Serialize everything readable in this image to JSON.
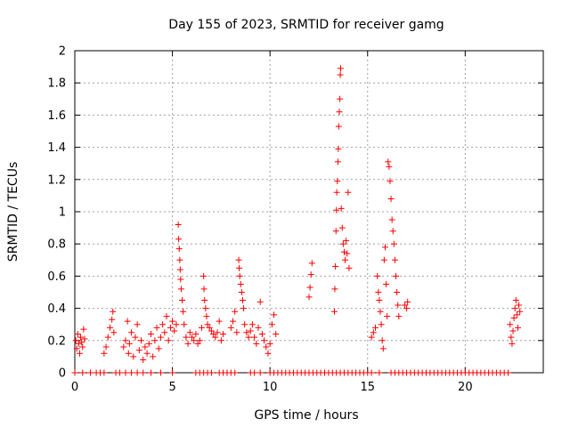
{
  "chart_data": {
    "type": "scatter",
    "title": "Day 155 of 2023, SRMTID for receiver gamg",
    "xlabel": "GPS time / hours",
    "ylabel": "SRMTID / TECUs",
    "xlim": [
      0,
      24
    ],
    "ylim": [
      0,
      2
    ],
    "grid": true,
    "marker": "+",
    "xticks": [
      0,
      5,
      10,
      15,
      20
    ],
    "xtick_labels": [
      "0",
      "5",
      "10",
      "15",
      "20"
    ],
    "yticks": [
      0,
      0.2,
      0.4,
      0.6,
      0.8,
      1,
      1.2,
      1.4,
      1.6,
      1.8,
      2
    ],
    "ytick_labels": [
      "0",
      "0.2",
      "0.4",
      "0.6",
      "0.8",
      "1",
      "1.2",
      "1.4",
      "1.6",
      "1.8",
      "2"
    ],
    "series": [
      {
        "name": "SRMTID",
        "color": "#ff0000",
        "points": [
          [
            0.05,
            0.2
          ],
          [
            0.1,
            0.15
          ],
          [
            0.15,
            0.24
          ],
          [
            0.2,
            0.18
          ],
          [
            0.25,
            0.12
          ],
          [
            0.3,
            0.22
          ],
          [
            0.35,
            0.19
          ],
          [
            0.4,
            0.16
          ],
          [
            0.45,
            0.27
          ],
          [
            0.5,
            0.21
          ],
          [
            1.5,
            0.12
          ],
          [
            1.6,
            0.16
          ],
          [
            1.7,
            0.22
          ],
          [
            1.8,
            0.28
          ],
          [
            1.9,
            0.33
          ],
          [
            1.95,
            0.38
          ],
          [
            2.0,
            0.25
          ],
          [
            2.5,
            0.16
          ],
          [
            2.6,
            0.2
          ],
          [
            2.7,
            0.32
          ],
          [
            2.75,
            0.12
          ],
          [
            2.8,
            0.18
          ],
          [
            2.9,
            0.25
          ],
          [
            3.0,
            0.1
          ],
          [
            3.1,
            0.22
          ],
          [
            3.2,
            0.3
          ],
          [
            3.3,
            0.14
          ],
          [
            3.4,
            0.2
          ],
          [
            3.5,
            0.08
          ],
          [
            3.6,
            0.16
          ],
          [
            3.7,
            0.12
          ],
          [
            3.8,
            0.18
          ],
          [
            3.9,
            0.24
          ],
          [
            4.0,
            0.1
          ],
          [
            4.1,
            0.2
          ],
          [
            4.2,
            0.28
          ],
          [
            4.3,
            0.15
          ],
          [
            4.4,
            0.22
          ],
          [
            4.5,
            0.3
          ],
          [
            4.6,
            0.25
          ],
          [
            4.7,
            0.35
          ],
          [
            4.8,
            0.2
          ],
          [
            4.9,
            0.28
          ],
          [
            5.0,
            0.32
          ],
          [
            5.1,
            0.26
          ],
          [
            5.2,
            0.3
          ],
          [
            5.3,
            0.92
          ],
          [
            5.32,
            0.83
          ],
          [
            5.35,
            0.77
          ],
          [
            5.38,
            0.7
          ],
          [
            5.4,
            0.64
          ],
          [
            5.42,
            0.58
          ],
          [
            5.45,
            0.52
          ],
          [
            5.5,
            0.45
          ],
          [
            5.55,
            0.38
          ],
          [
            5.6,
            0.3
          ],
          [
            5.7,
            0.22
          ],
          [
            5.8,
            0.18
          ],
          [
            5.9,
            0.25
          ],
          [
            6.0,
            0.22
          ],
          [
            6.1,
            0.2
          ],
          [
            6.2,
            0.24
          ],
          [
            6.3,
            0.18
          ],
          [
            6.4,
            0.2
          ],
          [
            6.5,
            0.28
          ],
          [
            6.6,
            0.6
          ],
          [
            6.62,
            0.52
          ],
          [
            6.65,
            0.45
          ],
          [
            6.7,
            0.4
          ],
          [
            6.75,
            0.35
          ],
          [
            6.8,
            0.3
          ],
          [
            6.9,
            0.28
          ],
          [
            7.0,
            0.26
          ],
          [
            7.1,
            0.24
          ],
          [
            7.2,
            0.22
          ],
          [
            7.3,
            0.25
          ],
          [
            7.4,
            0.32
          ],
          [
            7.5,
            0.2
          ],
          [
            7.6,
            0.24
          ],
          [
            8.0,
            0.28
          ],
          [
            8.1,
            0.32
          ],
          [
            8.2,
            0.38
          ],
          [
            8.3,
            0.25
          ],
          [
            8.4,
            0.7
          ],
          [
            8.42,
            0.65
          ],
          [
            8.45,
            0.6
          ],
          [
            8.5,
            0.55
          ],
          [
            8.55,
            0.5
          ],
          [
            8.6,
            0.45
          ],
          [
            8.65,
            0.4
          ],
          [
            8.7,
            0.3
          ],
          [
            8.8,
            0.25
          ],
          [
            8.9,
            0.22
          ],
          [
            9.0,
            0.26
          ],
          [
            9.1,
            0.3
          ],
          [
            9.2,
            0.22
          ],
          [
            9.3,
            0.18
          ],
          [
            9.4,
            0.28
          ],
          [
            9.5,
            0.44
          ],
          [
            9.6,
            0.24
          ],
          [
            9.7,
            0.2
          ],
          [
            9.8,
            0.16
          ],
          [
            9.9,
            0.12
          ],
          [
            10.0,
            0.18
          ],
          [
            10.1,
            0.3
          ],
          [
            10.2,
            0.36
          ],
          [
            10.3,
            0.24
          ],
          [
            12.0,
            0.47
          ],
          [
            12.05,
            0.53
          ],
          [
            12.1,
            0.61
          ],
          [
            12.15,
            0.68
          ],
          [
            13.3,
            0.38
          ],
          [
            13.32,
            0.52
          ],
          [
            13.35,
            0.66
          ],
          [
            13.38,
            0.88
          ],
          [
            13.4,
            1.01
          ],
          [
            13.42,
            1.12
          ],
          [
            13.45,
            1.19
          ],
          [
            13.48,
            1.31
          ],
          [
            13.5,
            1.39
          ],
          [
            13.52,
            1.53
          ],
          [
            13.55,
            1.62
          ],
          [
            13.58,
            1.7
          ],
          [
            13.6,
            1.85
          ],
          [
            13.62,
            1.89
          ],
          [
            13.65,
            1.02
          ],
          [
            13.7,
            0.9
          ],
          [
            13.75,
            0.8
          ],
          [
            13.8,
            0.75
          ],
          [
            13.85,
            0.7
          ],
          [
            13.9,
            0.82
          ],
          [
            13.95,
            0.74
          ],
          [
            14.0,
            1.12
          ],
          [
            14.05,
            0.65
          ],
          [
            15.2,
            0.22
          ],
          [
            15.3,
            0.25
          ],
          [
            15.4,
            0.28
          ],
          [
            15.5,
            0.6
          ],
          [
            15.55,
            0.5
          ],
          [
            15.6,
            0.45
          ],
          [
            15.65,
            0.38
          ],
          [
            15.7,
            0.3
          ],
          [
            15.75,
            0.2
          ],
          [
            15.8,
            0.15
          ],
          [
            15.85,
            0.7
          ],
          [
            15.9,
            0.78
          ],
          [
            15.95,
            0.55
          ],
          [
            16.0,
            0.35
          ],
          [
            16.05,
            1.31
          ],
          [
            16.1,
            1.28
          ],
          [
            16.15,
            1.19
          ],
          [
            16.2,
            1.08
          ],
          [
            16.25,
            0.95
          ],
          [
            16.3,
            0.88
          ],
          [
            16.35,
            0.8
          ],
          [
            16.4,
            0.7
          ],
          [
            16.45,
            0.6
          ],
          [
            16.5,
            0.5
          ],
          [
            16.55,
            0.42
          ],
          [
            16.6,
            0.35
          ],
          [
            16.9,
            0.42
          ],
          [
            17.0,
            0.4
          ],
          [
            17.05,
            0.44
          ],
          [
            22.3,
            0.3
          ],
          [
            22.35,
            0.22
          ],
          [
            22.4,
            0.18
          ],
          [
            22.45,
            0.26
          ],
          [
            22.5,
            0.34
          ],
          [
            22.55,
            0.4
          ],
          [
            22.6,
            0.45
          ],
          [
            22.65,
            0.36
          ],
          [
            22.7,
            0.28
          ],
          [
            22.75,
            0.42
          ],
          [
            22.8,
            0.38
          ],
          [
            0.0,
            0.0
          ],
          [
            0.4,
            0.0
          ],
          [
            0.8,
            0.0
          ],
          [
            1.1,
            0.0
          ],
          [
            1.3,
            0.0
          ],
          [
            1.5,
            0.0
          ],
          [
            2.1,
            0.0
          ],
          [
            2.3,
            0.0
          ],
          [
            2.6,
            0.0
          ],
          [
            2.9,
            0.0
          ],
          [
            3.2,
            0.0
          ],
          [
            3.5,
            0.0
          ],
          [
            3.9,
            0.0
          ],
          [
            4.4,
            0.0
          ],
          [
            5.0,
            0.0
          ],
          [
            6.2,
            0.0
          ],
          [
            6.4,
            0.0
          ],
          [
            6.6,
            0.0
          ],
          [
            6.8,
            0.0
          ],
          [
            7.0,
            0.0
          ],
          [
            7.4,
            0.0
          ],
          [
            7.6,
            0.0
          ],
          [
            7.8,
            0.0
          ],
          [
            8.0,
            0.0
          ],
          [
            8.2,
            0.0
          ],
          [
            9.0,
            0.0
          ],
          [
            9.2,
            0.0
          ],
          [
            9.5,
            0.0
          ],
          [
            10.0,
            0.0
          ],
          [
            10.2,
            0.0
          ],
          [
            10.4,
            0.0
          ],
          [
            10.6,
            0.0
          ],
          [
            10.8,
            0.0
          ],
          [
            11.0,
            0.0
          ],
          [
            11.2,
            0.0
          ],
          [
            11.4,
            0.0
          ],
          [
            11.6,
            0.0
          ],
          [
            11.8,
            0.0
          ],
          [
            12.0,
            0.0
          ],
          [
            12.2,
            0.0
          ],
          [
            12.4,
            0.0
          ],
          [
            12.6,
            0.0
          ],
          [
            12.8,
            0.0
          ],
          [
            13.0,
            0.0
          ],
          [
            13.2,
            0.0
          ],
          [
            13.4,
            0.0
          ],
          [
            13.6,
            0.0
          ],
          [
            13.8,
            0.0
          ],
          [
            14.0,
            0.0
          ],
          [
            14.2,
            0.0
          ],
          [
            14.4,
            0.0
          ],
          [
            14.6,
            0.0
          ],
          [
            14.8,
            0.0
          ],
          [
            15.0,
            0.0
          ],
          [
            15.2,
            0.0
          ],
          [
            15.6,
            0.0
          ],
          [
            16.2,
            0.0
          ],
          [
            16.4,
            0.0
          ],
          [
            16.6,
            0.0
          ],
          [
            16.8,
            0.0
          ],
          [
            17.0,
            0.0
          ],
          [
            17.2,
            0.0
          ],
          [
            17.4,
            0.0
          ],
          [
            17.6,
            0.0
          ],
          [
            17.8,
            0.0
          ],
          [
            18.0,
            0.0
          ],
          [
            18.2,
            0.0
          ],
          [
            18.4,
            0.0
          ],
          [
            18.6,
            0.0
          ],
          [
            18.8,
            0.0
          ],
          [
            19.0,
            0.0
          ],
          [
            19.2,
            0.0
          ],
          [
            19.4,
            0.0
          ],
          [
            19.6,
            0.0
          ],
          [
            19.8,
            0.0
          ],
          [
            20.0,
            0.0
          ],
          [
            20.2,
            0.0
          ],
          [
            20.4,
            0.0
          ],
          [
            20.6,
            0.0
          ],
          [
            20.8,
            0.0
          ],
          [
            21.0,
            0.0
          ],
          [
            21.2,
            0.0
          ],
          [
            21.4,
            0.0
          ],
          [
            21.6,
            0.0
          ],
          [
            21.8,
            0.0
          ],
          [
            22.0,
            0.0
          ],
          [
            22.2,
            0.0
          ]
        ]
      }
    ]
  }
}
